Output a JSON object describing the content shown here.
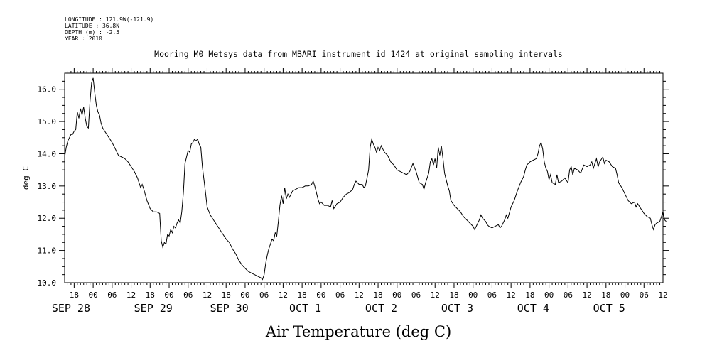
{
  "header": {
    "longitude": "LONGITUDE : 121.9W(-121.9)",
    "latitude": "LATITUDE : 36.8N",
    "depth": "DEPTH (m) : -2.5",
    "year": "YEAR : 2010"
  },
  "chart_data": {
    "type": "line",
    "title": "Mooring M0 Metsys data from MBARI instrument id 1424 at original sampling intervals",
    "footer_label": "Air Temperature (deg C)",
    "ylabel": "deg C",
    "xlabel": "",
    "ylim": [
      10.0,
      16.5
    ],
    "xlim_hours": [
      -9,
      180
    ],
    "y_ticks": [
      "10.0",
      "11.0",
      "12.0",
      "13.0",
      "14.0",
      "15.0",
      "16.0"
    ],
    "hour_labels": [
      {
        "h": -6,
        "t": "18"
      },
      {
        "h": 0,
        "t": "00"
      },
      {
        "h": 6,
        "t": "06"
      },
      {
        "h": 12,
        "t": "12"
      },
      {
        "h": 18,
        "t": "18"
      },
      {
        "h": 24,
        "t": "00"
      },
      {
        "h": 30,
        "t": "06"
      },
      {
        "h": 36,
        "t": "12"
      },
      {
        "h": 42,
        "t": "18"
      },
      {
        "h": 48,
        "t": "00"
      },
      {
        "h": 54,
        "t": "06"
      },
      {
        "h": 60,
        "t": "12"
      },
      {
        "h": 66,
        "t": "18"
      },
      {
        "h": 72,
        "t": "00"
      },
      {
        "h": 78,
        "t": "06"
      },
      {
        "h": 84,
        "t": "12"
      },
      {
        "h": 90,
        "t": "18"
      },
      {
        "h": 96,
        "t": "00"
      },
      {
        "h": 102,
        "t": "06"
      },
      {
        "h": 108,
        "t": "12"
      },
      {
        "h": 114,
        "t": "18"
      },
      {
        "h": 120,
        "t": "00"
      },
      {
        "h": 126,
        "t": "06"
      },
      {
        "h": 132,
        "t": "12"
      },
      {
        "h": 138,
        "t": "18"
      },
      {
        "h": 144,
        "t": "00"
      },
      {
        "h": 150,
        "t": "06"
      },
      {
        "h": 156,
        "t": "12"
      },
      {
        "h": 162,
        "t": "18"
      },
      {
        "h": 168,
        "t": "00"
      },
      {
        "h": 174,
        "t": "06"
      },
      {
        "h": 180,
        "t": "12"
      }
    ],
    "day_labels": [
      {
        "h": -7,
        "t": "SEP 28"
      },
      {
        "h": 19,
        "t": "SEP 29"
      },
      {
        "h": 43,
        "t": "SEP 30"
      },
      {
        "h": 67,
        "t": "OCT  1"
      },
      {
        "h": 91,
        "t": "OCT  2"
      },
      {
        "h": 115,
        "t": "OCT  3"
      },
      {
        "h": 139,
        "t": "OCT  4"
      },
      {
        "h": 163,
        "t": "OCT  5"
      }
    ],
    "series": [
      {
        "values": [
          [
            -9,
            13.9
          ],
          [
            -8.5,
            14.2
          ],
          [
            -8,
            14.4
          ],
          [
            -7.5,
            14.5
          ],
          [
            -7,
            14.6
          ],
          [
            -6.5,
            14.6
          ],
          [
            -6,
            14.7
          ],
          [
            -5.5,
            14.75
          ],
          [
            -5,
            15.3
          ],
          [
            -4.5,
            15.1
          ],
          [
            -4,
            15.4
          ],
          [
            -3.5,
            15.2
          ],
          [
            -3,
            15.45
          ],
          [
            -2.5,
            15.1
          ],
          [
            -2,
            14.85
          ],
          [
            -1.5,
            14.8
          ],
          [
            -1,
            15.6
          ],
          [
            -0.5,
            16.2
          ],
          [
            0,
            16.35
          ],
          [
            0.5,
            15.9
          ],
          [
            1,
            15.5
          ],
          [
            1.5,
            15.3
          ],
          [
            2,
            15.2
          ],
          [
            2.5,
            14.95
          ],
          [
            3,
            14.8
          ],
          [
            4,
            14.65
          ],
          [
            5,
            14.5
          ],
          [
            6,
            14.35
          ],
          [
            7,
            14.15
          ],
          [
            8,
            13.95
          ],
          [
            9,
            13.9
          ],
          [
            10,
            13.85
          ],
          [
            11,
            13.75
          ],
          [
            12,
            13.6
          ],
          [
            13,
            13.45
          ],
          [
            14,
            13.25
          ],
          [
            15,
            12.95
          ],
          [
            15.5,
            13.05
          ],
          [
            16,
            12.9
          ],
          [
            17,
            12.55
          ],
          [
            18,
            12.3
          ],
          [
            19,
            12.2
          ],
          [
            20,
            12.2
          ],
          [
            21,
            12.15
          ],
          [
            21.5,
            11.3
          ],
          [
            22,
            11.1
          ],
          [
            22.5,
            11.25
          ],
          [
            23,
            11.2
          ],
          [
            23.5,
            11.5
          ],
          [
            24,
            11.45
          ],
          [
            24.5,
            11.65
          ],
          [
            25,
            11.55
          ],
          [
            25.5,
            11.75
          ],
          [
            26,
            11.7
          ],
          [
            26.5,
            11.85
          ],
          [
            27,
            11.95
          ],
          [
            27.5,
            11.85
          ],
          [
            28,
            12.2
          ],
          [
            28.5,
            12.8
          ],
          [
            29,
            13.7
          ],
          [
            29.5,
            13.9
          ],
          [
            30,
            14.1
          ],
          [
            30.5,
            14.05
          ],
          [
            31,
            14.3
          ],
          [
            31.5,
            14.35
          ],
          [
            32,
            14.45
          ],
          [
            32.5,
            14.4
          ],
          [
            33,
            14.45
          ],
          [
            33.5,
            14.3
          ],
          [
            34,
            14.2
          ],
          [
            34.5,
            13.6
          ],
          [
            35,
            13.2
          ],
          [
            35.5,
            12.8
          ],
          [
            36,
            12.35
          ],
          [
            37,
            12.1
          ],
          [
            38,
            11.95
          ],
          [
            39,
            11.8
          ],
          [
            40,
            11.65
          ],
          [
            41,
            11.5
          ],
          [
            42,
            11.35
          ],
          [
            43,
            11.25
          ],
          [
            44,
            11.05
          ],
          [
            45,
            10.9
          ],
          [
            46,
            10.7
          ],
          [
            47,
            10.55
          ],
          [
            48,
            10.45
          ],
          [
            49,
            10.35
          ],
          [
            50,
            10.3
          ],
          [
            51,
            10.25
          ],
          [
            52,
            10.2
          ],
          [
            53,
            10.15
          ],
          [
            53.5,
            10.1
          ],
          [
            54,
            10.25
          ],
          [
            54.5,
            10.6
          ],
          [
            55,
            10.85
          ],
          [
            55.5,
            11.05
          ],
          [
            56,
            11.2
          ],
          [
            56.5,
            11.35
          ],
          [
            57,
            11.3
          ],
          [
            57.5,
            11.55
          ],
          [
            58,
            11.45
          ],
          [
            58.5,
            11.9
          ],
          [
            59,
            12.4
          ],
          [
            59.5,
            12.7
          ],
          [
            60,
            12.45
          ],
          [
            60.5,
            12.95
          ],
          [
            61,
            12.6
          ],
          [
            61.5,
            12.75
          ],
          [
            62,
            12.65
          ],
          [
            63,
            12.85
          ],
          [
            64,
            12.9
          ],
          [
            65,
            12.95
          ],
          [
            66,
            12.95
          ],
          [
            67,
            13.0
          ],
          [
            68,
            13.0
          ],
          [
            69,
            13.05
          ],
          [
            69.5,
            13.15
          ],
          [
            70,
            13.0
          ],
          [
            70.5,
            12.8
          ],
          [
            71,
            12.6
          ],
          [
            71.5,
            12.45
          ],
          [
            72,
            12.5
          ],
          [
            73,
            12.4
          ],
          [
            74,
            12.4
          ],
          [
            75,
            12.35
          ],
          [
            75.5,
            12.55
          ],
          [
            76,
            12.3
          ],
          [
            77,
            12.45
          ],
          [
            78,
            12.5
          ],
          [
            79,
            12.65
          ],
          [
            80,
            12.75
          ],
          [
            81,
            12.8
          ],
          [
            82,
            12.9
          ],
          [
            82.5,
            13.05
          ],
          [
            83,
            13.15
          ],
          [
            84,
            13.05
          ],
          [
            85,
            13.05
          ],
          [
            85.5,
            12.95
          ],
          [
            86,
            13.0
          ],
          [
            86.5,
            13.25
          ],
          [
            87,
            13.5
          ],
          [
            87.5,
            14.2
          ],
          [
            88,
            14.45
          ],
          [
            88.5,
            14.3
          ],
          [
            89,
            14.2
          ],
          [
            89.5,
            14.05
          ],
          [
            90,
            14.2
          ],
          [
            90.5,
            14.1
          ],
          [
            91,
            14.25
          ],
          [
            91.5,
            14.15
          ],
          [
            92,
            14.05
          ],
          [
            93,
            13.95
          ],
          [
            94,
            13.75
          ],
          [
            95,
            13.65
          ],
          [
            96,
            13.5
          ],
          [
            97,
            13.45
          ],
          [
            98,
            13.4
          ],
          [
            99,
            13.35
          ],
          [
            100,
            13.45
          ],
          [
            101,
            13.7
          ],
          [
            102,
            13.45
          ],
          [
            103,
            13.1
          ],
          [
            104,
            13.05
          ],
          [
            104.5,
            12.9
          ],
          [
            105,
            13.1
          ],
          [
            105.5,
            13.25
          ],
          [
            106,
            13.4
          ],
          [
            106.5,
            13.75
          ],
          [
            107,
            13.85
          ],
          [
            107.5,
            13.65
          ],
          [
            108,
            13.85
          ],
          [
            108.5,
            13.55
          ],
          [
            109,
            14.2
          ],
          [
            109.5,
            13.95
          ],
          [
            110,
            14.25
          ],
          [
            110.5,
            13.85
          ],
          [
            111,
            13.4
          ],
          [
            111.5,
            13.2
          ],
          [
            112,
            13.0
          ],
          [
            112.5,
            12.85
          ],
          [
            113,
            12.55
          ],
          [
            114,
            12.4
          ],
          [
            115,
            12.3
          ],
          [
            116,
            12.2
          ],
          [
            117,
            12.05
          ],
          [
            118,
            11.95
          ],
          [
            119,
            11.85
          ],
          [
            120,
            11.75
          ],
          [
            120.5,
            11.65
          ],
          [
            121,
            11.75
          ],
          [
            122,
            11.95
          ],
          [
            122.5,
            12.1
          ],
          [
            123,
            12.0
          ],
          [
            124,
            11.9
          ],
          [
            124.5,
            11.8
          ],
          [
            125,
            11.75
          ],
          [
            126,
            11.7
          ],
          [
            127,
            11.75
          ],
          [
            128,
            11.8
          ],
          [
            128.5,
            11.7
          ],
          [
            129,
            11.75
          ],
          [
            130,
            11.95
          ],
          [
            130.5,
            12.1
          ],
          [
            131,
            12.0
          ],
          [
            132,
            12.35
          ],
          [
            133,
            12.55
          ],
          [
            134,
            12.85
          ],
          [
            135,
            13.1
          ],
          [
            136,
            13.3
          ],
          [
            136.5,
            13.5
          ],
          [
            137,
            13.65
          ],
          [
            138,
            13.75
          ],
          [
            139,
            13.8
          ],
          [
            140,
            13.85
          ],
          [
            140.5,
            14.0
          ],
          [
            141,
            14.25
          ],
          [
            141.5,
            14.35
          ],
          [
            142,
            14.15
          ],
          [
            142.5,
            13.75
          ],
          [
            143,
            13.55
          ],
          [
            143.5,
            13.45
          ],
          [
            144,
            13.2
          ],
          [
            144.5,
            13.35
          ],
          [
            145,
            13.1
          ],
          [
            146,
            13.05
          ],
          [
            146.5,
            13.35
          ],
          [
            147,
            13.1
          ],
          [
            148,
            13.15
          ],
          [
            149,
            13.25
          ],
          [
            150,
            13.1
          ],
          [
            150.5,
            13.5
          ],
          [
            151,
            13.6
          ],
          [
            151.5,
            13.35
          ],
          [
            152,
            13.55
          ],
          [
            153,
            13.5
          ],
          [
            154,
            13.4
          ],
          [
            155,
            13.65
          ],
          [
            156,
            13.6
          ],
          [
            157,
            13.65
          ],
          [
            157.5,
            13.75
          ],
          [
            158,
            13.55
          ],
          [
            159,
            13.85
          ],
          [
            159.5,
            13.6
          ],
          [
            160,
            13.75
          ],
          [
            161,
            13.9
          ],
          [
            161.5,
            13.7
          ],
          [
            162,
            13.8
          ],
          [
            163,
            13.75
          ],
          [
            164,
            13.6
          ],
          [
            165,
            13.55
          ],
          [
            165.5,
            13.35
          ],
          [
            166,
            13.1
          ],
          [
            167,
            12.95
          ],
          [
            168,
            12.75
          ],
          [
            169,
            12.55
          ],
          [
            170,
            12.45
          ],
          [
            171,
            12.5
          ],
          [
            171.5,
            12.35
          ],
          [
            172,
            12.45
          ],
          [
            173,
            12.3
          ],
          [
            174,
            12.15
          ],
          [
            175,
            12.05
          ],
          [
            176,
            12.0
          ],
          [
            176.5,
            11.8
          ],
          [
            177,
            11.65
          ],
          [
            177.5,
            11.8
          ],
          [
            178,
            11.85
          ],
          [
            179,
            11.9
          ],
          [
            179.5,
            12.05
          ],
          [
            180,
            12.2
          ],
          [
            180.5,
            11.95
          ],
          [
            181,
            11.9
          ]
        ]
      }
    ]
  }
}
